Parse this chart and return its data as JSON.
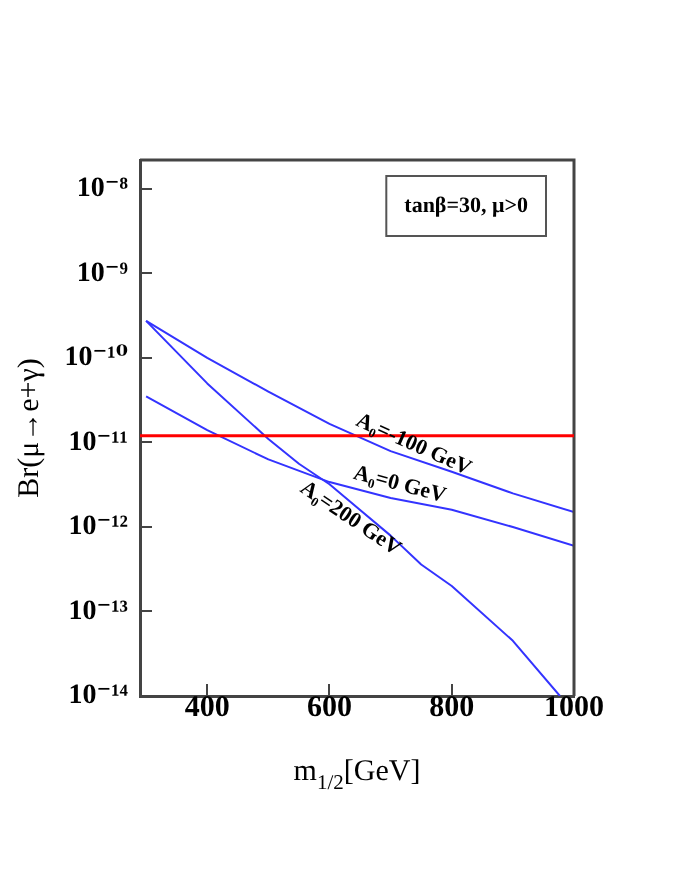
{
  "chart_data": {
    "type": "line",
    "xlabel": "m$_{1/2}$[GeV]",
    "ylabel": "Br(μ→e+γ)",
    "annotations": [
      "tanβ=30, μ>0"
    ],
    "log": "y",
    "grid": false,
    "legend": false,
    "marker": "none",
    "line_style": "solid",
    "xlim": [
      290,
      1000
    ],
    "xticks": [
      400,
      600,
      800,
      1000
    ],
    "ylim": [
      1e-14,
      2.2e-08
    ],
    "yticks": [
      {
        "value": 1e-08,
        "label": "10⁻⁸"
      },
      {
        "value": 1e-09,
        "label": "10⁻⁹"
      },
      {
        "value": 1e-10,
        "label": "10⁻¹⁰"
      },
      {
        "value": 1e-11,
        "label": "10⁻¹¹"
      },
      {
        "value": 1e-12,
        "label": "10⁻¹²"
      },
      {
        "value": 1e-13,
        "label": "10⁻¹³"
      },
      {
        "value": 1e-14,
        "label": "10⁻¹⁴"
      }
    ],
    "ref_lines": [
      {
        "axis": "y",
        "value": 1.2e-11,
        "color": "#ff0000"
      }
    ],
    "series": [
      {
        "name": "A₀=-100 GeV",
        "color": "#3333ff",
        "x": [
          300,
          400,
          500,
          600,
          700,
          800,
          900,
          1000
        ],
        "values": [
          2.75e-10,
          1e-10,
          4e-11,
          1.66e-11,
          7.9e-12,
          4.5e-12,
          2.5e-12,
          1.5e-12
        ]
      },
      {
        "name": "A₀=0 GeV",
        "color": "#3333ff",
        "x": [
          300,
          400,
          500,
          600,
          700,
          800,
          900,
          1000
        ],
        "values": [
          3.5e-11,
          1.4e-11,
          6.3e-12,
          3.4e-12,
          2.2e-12,
          1.6e-12,
          1e-12,
          6e-13
        ]
      },
      {
        "name": "A₀=200 GeV",
        "color": "#3333ff",
        "x": [
          300,
          400,
          500,
          550,
          600,
          700,
          750,
          800,
          900,
          977
        ],
        "values": [
          2.75e-10,
          5e-11,
          1.1e-11,
          5.6e-12,
          3.2e-12,
          7.9e-13,
          3.6e-13,
          2e-13,
          4.5e-14,
          1e-14
        ]
      }
    ]
  }
}
